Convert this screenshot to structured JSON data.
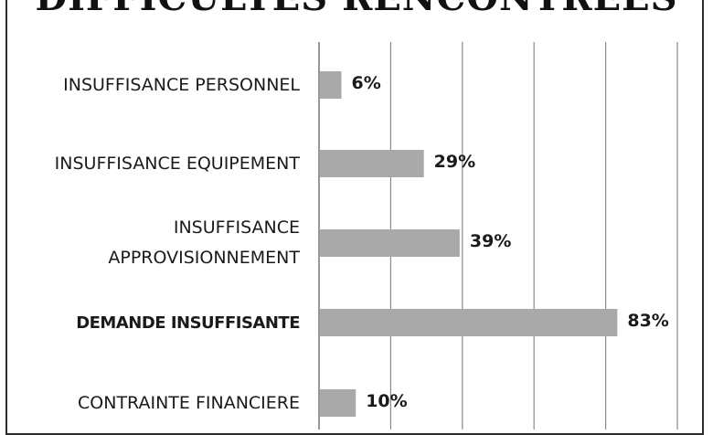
{
  "chart_data": {
    "type": "bar",
    "orientation": "horizontal",
    "title": "DIFFICULTES RENCONTREES",
    "categories": [
      "INSUFFISANCE PERSONNEL",
      "INSUFFISANCE EQUIPEMENT",
      "INSUFFISANCE\nAPPROVISIONNEMENT",
      "DEMANDE INSUFFISANTE",
      "CONTRAINTE FINANCIERE"
    ],
    "values": [
      6,
      29,
      39,
      83,
      10
    ],
    "data_labels": [
      "6%",
      "29%",
      "39%",
      "83%",
      "10%"
    ],
    "highlighted_category": "DEMANDE INSUFFISANTE",
    "xlim": [
      0,
      100
    ],
    "grid": true,
    "colors": {
      "bar": "#a9a9a9",
      "grid": "#8a8a8a",
      "text": "#1a1a1a"
    }
  }
}
